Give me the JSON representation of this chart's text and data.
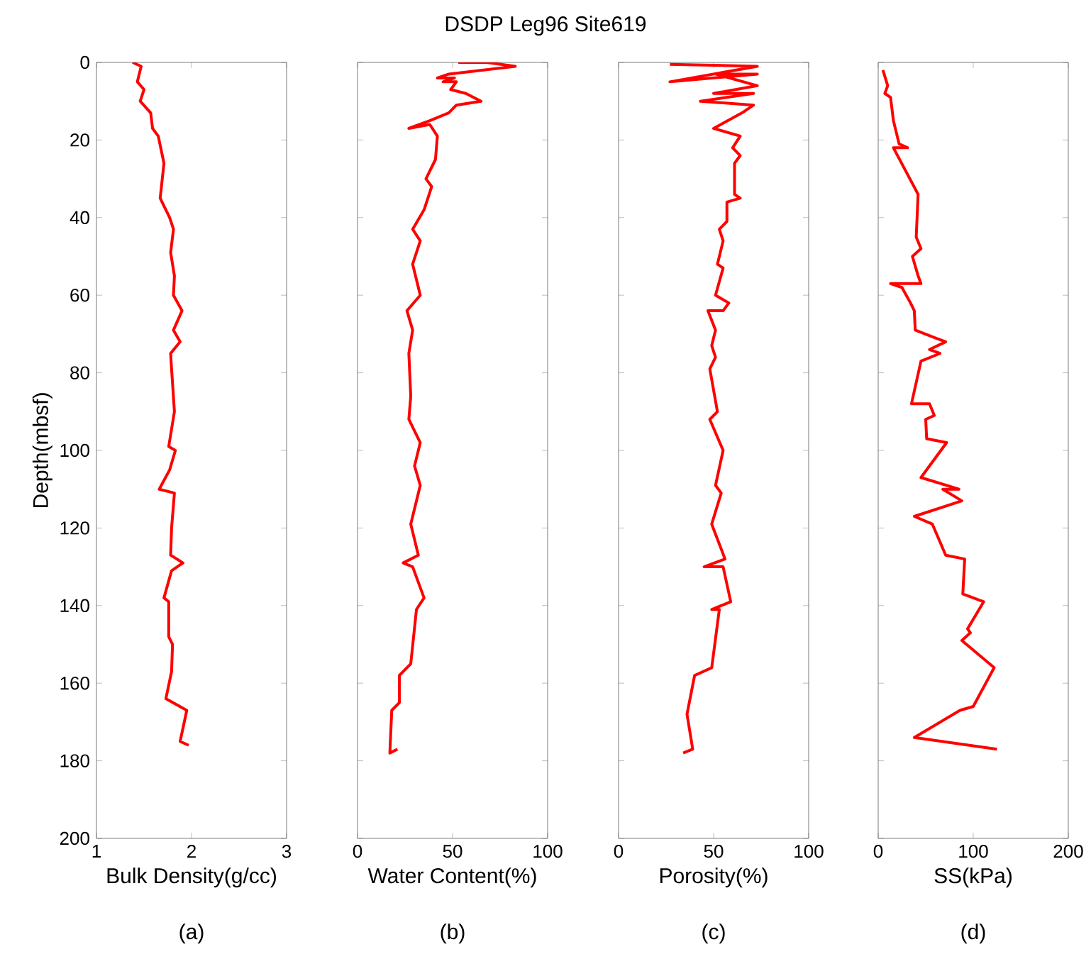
{
  "chart_data": [
    {
      "type": "line",
      "xlabel": "Bulk Density(g/cc)",
      "ylabel": "Depth(mbsf)",
      "annotations": [
        "(a)"
      ],
      "xlim": [
        1,
        3
      ],
      "xticks": [
        1,
        2,
        3
      ],
      "ylim": [
        200,
        0
      ],
      "yticks": [
        0,
        20,
        40,
        60,
        80,
        100,
        120,
        140,
        160,
        180,
        200
      ],
      "series": [
        {
          "color": "#ff0000",
          "x": [
            1.38,
            1.47,
            1.43,
            1.5,
            1.46,
            1.57,
            1.59,
            1.65,
            1.71,
            1.67,
            1.77,
            1.81,
            1.78,
            1.82,
            1.81,
            1.9,
            1.81,
            1.88,
            1.78,
            1.79,
            1.82,
            1.76,
            1.83,
            1.77,
            1.66,
            1.82,
            1.79,
            1.78,
            1.91,
            1.79,
            1.71,
            1.76,
            1.76,
            1.8,
            1.79,
            1.73,
            1.95,
            1.88,
            1.97
          ],
          "values": [
            0,
            1,
            5,
            7,
            10,
            13,
            17,
            19,
            26,
            35,
            40,
            43,
            49,
            55,
            60,
            64,
            69,
            72,
            75,
            79,
            90,
            99,
            100,
            105,
            110,
            111,
            120,
            127,
            129,
            131,
            138,
            139,
            148,
            150,
            157,
            164,
            167,
            175,
            176
          ]
        }
      ]
    },
    {
      "type": "line",
      "title": "DSDP Leg96 Site619",
      "xlabel": "Water Content(%)",
      "annotations": [
        "(b)"
      ],
      "xlim": [
        0,
        100
      ],
      "xticks": [
        0,
        50,
        100
      ],
      "ylim": [
        200,
        0
      ],
      "yticks": [
        0,
        20,
        40,
        60,
        80,
        100,
        120,
        140,
        160,
        180,
        200
      ],
      "tick_labels": "x",
      "series": [
        {
          "color": "#ff0000",
          "x": [
            53,
            68,
            83,
            48,
            42,
            51,
            45,
            52,
            49,
            57,
            65,
            52,
            48,
            38,
            27,
            38,
            42,
            41,
            36,
            39,
            35,
            29,
            33,
            29,
            33,
            26,
            29,
            27,
            28,
            27,
            33,
            30,
            33,
            28,
            32,
            24,
            29,
            35,
            31,
            28,
            22,
            22,
            18,
            17,
            21
          ],
          "values": [
            0,
            0,
            1,
            3,
            4,
            4,
            5,
            5,
            7,
            8,
            10,
            11,
            13,
            15,
            17,
            16,
            19,
            25,
            30,
            32,
            38,
            43,
            46,
            52,
            60,
            64,
            69,
            75,
            86,
            92,
            98,
            104,
            109,
            119,
            127,
            129,
            130,
            138,
            141,
            155,
            158,
            165,
            167,
            178,
            177
          ]
        }
      ]
    },
    {
      "type": "line",
      "xlabel": "Porosity(%)",
      "annotations": [
        "(c)"
      ],
      "xlim": [
        0,
        100
      ],
      "xticks": [
        0,
        50,
        100
      ],
      "ylim": [
        200,
        0
      ],
      "yticks": [
        0,
        20,
        40,
        60,
        80,
        100,
        120,
        140,
        160,
        180,
        200
      ],
      "tick_labels": "x",
      "series": [
        {
          "color": "#ff0000",
          "x": [
            27,
            73,
            27,
            73,
            51,
            73,
            50,
            71,
            43,
            71,
            65,
            50,
            64,
            60,
            64,
            61,
            61,
            64,
            57,
            57,
            53,
            55,
            52,
            55,
            51,
            58,
            55,
            47,
            51,
            49,
            51,
            48,
            52,
            48,
            55,
            51,
            54,
            49,
            56,
            45,
            55,
            59,
            49,
            53,
            49,
            40,
            36,
            39,
            34
          ],
          "values": [
            0.5,
            1,
            5,
            3,
            3,
            6,
            8,
            8,
            10,
            11,
            13,
            17,
            19,
            22,
            24,
            26,
            34,
            35,
            36,
            41,
            43,
            46,
            52,
            53,
            60,
            62,
            64,
            64,
            69,
            73,
            76,
            79,
            90,
            92,
            100,
            109,
            111,
            119,
            128,
            130,
            130,
            139,
            141,
            141,
            156,
            158,
            168,
            177,
            178
          ]
        }
      ]
    },
    {
      "type": "line",
      "xlabel": "SS(kPa)",
      "annotations": [
        "(d)"
      ],
      "xlim": [
        0,
        200
      ],
      "xticks": [
        0,
        100,
        200
      ],
      "ylim": [
        200,
        0
      ],
      "yticks": [
        0,
        20,
        40,
        60,
        80,
        100,
        120,
        140,
        160,
        180,
        200
      ],
      "tick_labels": "x",
      "series": [
        {
          "color": "#ff0000",
          "x": [
            5,
            10,
            7,
            13,
            16,
            22,
            31,
            16,
            42,
            40,
            45,
            36,
            42,
            45,
            13,
            25,
            34,
            38,
            39,
            60,
            71,
            54,
            65,
            45,
            35,
            54,
            59,
            50,
            51,
            72,
            45,
            85,
            68,
            88,
            38,
            57,
            71,
            91,
            89,
            111,
            94,
            97,
            88,
            122,
            100,
            86,
            38,
            125
          ],
          "values": [
            2,
            6,
            8,
            9,
            15,
            21,
            22,
            22,
            34,
            45,
            48,
            50,
            55,
            57,
            57,
            58,
            62,
            64,
            69,
            71,
            72,
            74,
            75,
            77,
            88,
            88,
            91,
            92,
            97,
            98,
            107,
            110,
            110,
            113,
            117,
            119,
            127,
            128,
            137,
            139,
            146,
            147,
            149,
            156,
            166,
            167,
            174,
            177
          ]
        }
      ]
    }
  ]
}
